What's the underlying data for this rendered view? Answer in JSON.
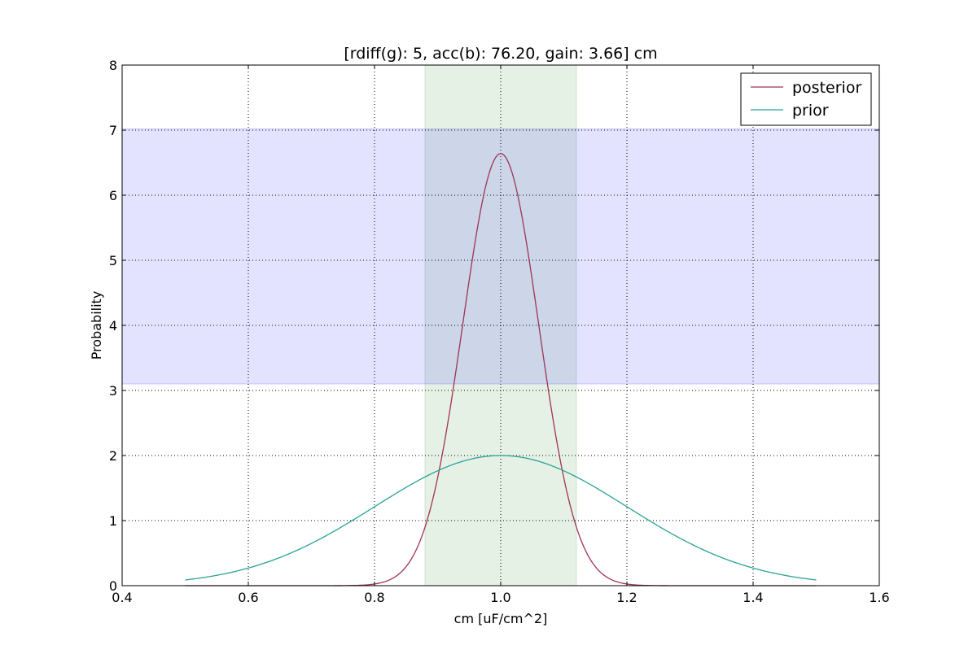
{
  "chart_data": {
    "type": "line",
    "title": "[rdiff(g): 5, acc(b): 76.20, gain: 3.66] cm",
    "xlabel": "cm [uF/cm^2]",
    "ylabel": "Probability",
    "xlim": [
      0.4,
      1.6
    ],
    "ylim": [
      0,
      8
    ],
    "xticks": [
      0.4,
      0.6,
      0.8,
      1.0,
      1.2,
      1.4,
      1.6
    ],
    "xtick_labels": [
      "0.4",
      "0.6",
      "0.8",
      "1.0",
      "1.2",
      "1.4",
      "1.6"
    ],
    "yticks": [
      0,
      1,
      2,
      3,
      4,
      5,
      6,
      7,
      8
    ],
    "ytick_labels": [
      "0",
      "1",
      "2",
      "3",
      "4",
      "5",
      "6",
      "7",
      "8"
    ],
    "grid": true,
    "legend_position": "top-right",
    "shaded_regions": [
      {
        "axis": "x",
        "from": 0.88,
        "to": 1.12,
        "color": "#2e8b2e",
        "opacity": 0.12
      },
      {
        "axis": "y",
        "from": 3.1,
        "to": 7.02,
        "color": "#0000ff",
        "opacity": 0.11
      }
    ],
    "series": [
      {
        "name": "posterior",
        "color": "#9e3456",
        "x_range": [
          0.5,
          1.5
        ],
        "distribution": "gaussian",
        "peak": 6.64,
        "mean": 1.0,
        "std": 0.06
      },
      {
        "name": "prior",
        "color": "#2aa198",
        "x_range": [
          0.5,
          1.5
        ],
        "distribution": "gaussian",
        "peak": 2.0,
        "mean": 1.0,
        "std": 0.2
      }
    ]
  }
}
